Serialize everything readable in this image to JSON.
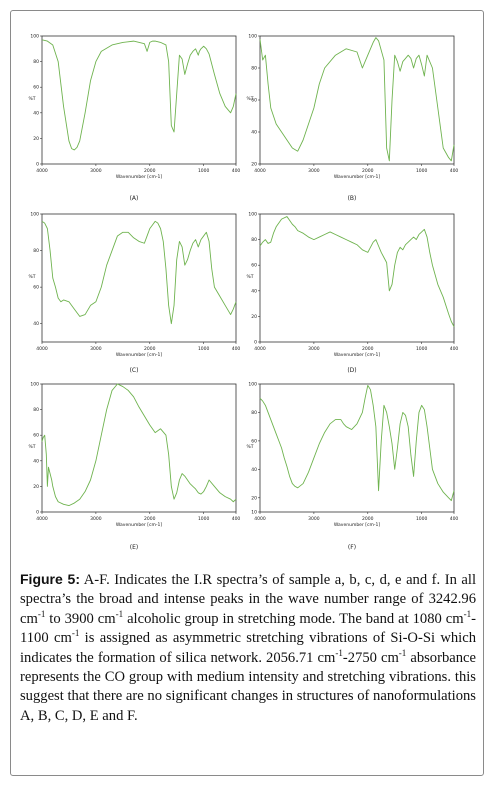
{
  "colors": {
    "trace": "#6fb34f",
    "axis": "#333333",
    "label": "#222222"
  },
  "caption": {
    "figure_label": "Figure 5:",
    "p1": " A-F. Indicates the I.R spectra’s of sample a, b, c, d, e and f. In all spectra’s the broad and intense peaks in the wave number range of 3242.96 cm",
    "p2": " to 3900 cm",
    "p3": " alcoholic group in stretching mode. The band at 1080 cm",
    "p4": "-1100 cm",
    "p5": " is assigned as asymmetric stretching vibrations of Si-O-Si which indicates the formation of silica network. 2056.71 cm",
    "p6": "-2750 cm",
    "p7": " absorbance represents the CO group with medium intensity and stretching vibrations. this suggest that there are no significant changes in structures of nanoformulations A, B, C, D, E and F.",
    "sup": "-1"
  },
  "chart_data": [
    {
      "type": "line",
      "panel_label": "(A)",
      "xlabel": "Wavenumber [cm-1]",
      "ylabel": "%T",
      "xlim": [
        4000,
        400
      ],
      "ylim": [
        0,
        100
      ],
      "xticks": [
        "4000",
        "3000",
        "2000",
        "1000",
        "400"
      ],
      "yticks": [
        "0",
        "20",
        "40",
        "60",
        "80",
        "100"
      ],
      "series": [
        {
          "x": [
            4000,
            3900,
            3800,
            3700,
            3600,
            3500,
            3450,
            3400,
            3350,
            3300,
            3200,
            3100,
            3000,
            2900,
            2700,
            2500,
            2300,
            2100,
            2050,
            2000,
            1950,
            1900,
            1800,
            1700,
            1650,
            1600,
            1550,
            1500,
            1450,
            1400,
            1350,
            1300,
            1250,
            1200,
            1150,
            1100,
            1080,
            1050,
            1000,
            950,
            900,
            800,
            700,
            600,
            500,
            450,
            400
          ],
          "y": [
            97,
            96,
            93,
            80,
            45,
            18,
            12,
            11,
            13,
            18,
            40,
            65,
            80,
            88,
            93,
            95,
            96,
            94,
            88,
            95,
            96,
            96,
            95,
            93,
            80,
            30,
            25,
            55,
            85,
            82,
            70,
            78,
            85,
            88,
            90,
            85,
            88,
            90,
            92,
            90,
            86,
            70,
            55,
            45,
            40,
            45,
            55
          ]
        }
      ]
    },
    {
      "type": "line",
      "panel_label": "(B)",
      "xlabel": "Wavenumber [cm-1]",
      "ylabel": "%T",
      "xlim": [
        4000,
        400
      ],
      "ylim": [
        20,
        100
      ],
      "xticks": [
        "4000",
        "3000",
        "2000",
        "1000",
        "400"
      ],
      "yticks": [
        "20",
        "40",
        "60",
        "80",
        "100"
      ],
      "series": [
        {
          "x": [
            4000,
            3950,
            3900,
            3850,
            3800,
            3700,
            3600,
            3500,
            3400,
            3300,
            3200,
            3100,
            3000,
            2900,
            2800,
            2600,
            2400,
            2200,
            2100,
            2050,
            2000,
            1950,
            1900,
            1850,
            1800,
            1700,
            1650,
            1600,
            1550,
            1500,
            1450,
            1400,
            1350,
            1300,
            1250,
            1200,
            1150,
            1100,
            1050,
            1000,
            950,
            900,
            800,
            700,
            600,
            500,
            450,
            400
          ],
          "y": [
            98,
            85,
            88,
            70,
            55,
            45,
            40,
            35,
            30,
            28,
            35,
            45,
            55,
            70,
            80,
            88,
            92,
            90,
            80,
            84,
            88,
            92,
            96,
            99,
            97,
            85,
            30,
            22,
            60,
            88,
            84,
            78,
            84,
            86,
            88,
            86,
            80,
            86,
            88,
            82,
            75,
            88,
            80,
            55,
            30,
            24,
            22,
            32
          ]
        }
      ]
    },
    {
      "type": "line",
      "panel_label": "(C)",
      "xlabel": "Wavenumber [cm-1]",
      "ylabel": "%T",
      "xlim": [
        4000,
        400
      ],
      "ylim": [
        30,
        100
      ],
      "xticks": [
        "4000",
        "3000",
        "2000",
        "1000",
        "400"
      ],
      "yticks": [
        "40",
        "60",
        "80",
        "100"
      ],
      "series": [
        {
          "x": [
            4000,
            3950,
            3900,
            3850,
            3800,
            3750,
            3700,
            3650,
            3600,
            3500,
            3400,
            3300,
            3200,
            3100,
            3000,
            2900,
            2800,
            2700,
            2600,
            2500,
            2400,
            2300,
            2200,
            2100,
            2050,
            2000,
            1950,
            1900,
            1850,
            1800,
            1750,
            1700,
            1650,
            1600,
            1550,
            1500,
            1450,
            1400,
            1350,
            1300,
            1250,
            1200,
            1150,
            1100,
            1050,
            1000,
            950,
            900,
            850,
            800,
            700,
            600,
            500,
            450,
            400
          ],
          "y": [
            96,
            95,
            92,
            80,
            65,
            60,
            54,
            52,
            53,
            52,
            48,
            44,
            45,
            50,
            52,
            60,
            72,
            80,
            88,
            90,
            90,
            87,
            85,
            84,
            88,
            92,
            94,
            96,
            95,
            92,
            85,
            70,
            50,
            40,
            50,
            75,
            85,
            82,
            72,
            75,
            80,
            84,
            86,
            82,
            86,
            88,
            90,
            85,
            70,
            60,
            55,
            50,
            45,
            48,
            52
          ]
        }
      ]
    },
    {
      "type": "line",
      "panel_label": "(D)",
      "xlabel": "Wavenumber [cm-1]",
      "ylabel": "%T",
      "xlim": [
        4000,
        400
      ],
      "ylim": [
        0,
        100
      ],
      "xticks": [
        "4000",
        "3000",
        "2000",
        "1000",
        "400"
      ],
      "yticks": [
        "0",
        "20",
        "40",
        "60",
        "80",
        "100"
      ],
      "series": [
        {
          "x": [
            4000,
            3950,
            3900,
            3850,
            3800,
            3750,
            3700,
            3600,
            3500,
            3450,
            3400,
            3350,
            3300,
            3200,
            3100,
            3000,
            2900,
            2800,
            2700,
            2600,
            2500,
            2400,
            2300,
            2200,
            2100,
            2000,
            1950,
            1900,
            1850,
            1800,
            1750,
            1700,
            1650,
            1600,
            1550,
            1500,
            1450,
            1400,
            1350,
            1300,
            1250,
            1200,
            1150,
            1100,
            1050,
            1000,
            950,
            900,
            850,
            800,
            700,
            600,
            500,
            450,
            400
          ],
          "y": [
            75,
            78,
            80,
            77,
            78,
            85,
            90,
            96,
            98,
            95,
            92,
            90,
            87,
            85,
            82,
            80,
            82,
            84,
            86,
            84,
            82,
            80,
            78,
            76,
            72,
            70,
            74,
            78,
            80,
            75,
            70,
            66,
            62,
            40,
            45,
            60,
            70,
            74,
            72,
            76,
            78,
            80,
            82,
            80,
            84,
            86,
            88,
            82,
            70,
            60,
            45,
            35,
            22,
            16,
            12
          ]
        }
      ]
    },
    {
      "type": "line",
      "panel_label": "(E)",
      "xlabel": "Wavenumber [cm-1]",
      "ylabel": "%T",
      "xlim": [
        4000,
        400
      ],
      "ylim": [
        0,
        100
      ],
      "xticks": [
        "4000",
        "3000",
        "2000",
        "1000",
        "400"
      ],
      "yticks": [
        "0",
        "20",
        "40",
        "60",
        "80",
        "100"
      ],
      "series": [
        {
          "x": [
            4000,
            3980,
            3950,
            3920,
            3900,
            3880,
            3850,
            3820,
            3800,
            3750,
            3700,
            3600,
            3500,
            3400,
            3300,
            3200,
            3100,
            3000,
            2900,
            2800,
            2700,
            2600,
            2500,
            2400,
            2300,
            2200,
            2100,
            2000,
            1900,
            1800,
            1700,
            1650,
            1600,
            1550,
            1500,
            1450,
            1400,
            1350,
            1300,
            1250,
            1200,
            1150,
            1100,
            1050,
            1000,
            950,
            900,
            800,
            700,
            600,
            500,
            450,
            400
          ],
          "y": [
            55,
            58,
            60,
            45,
            20,
            35,
            30,
            25,
            20,
            12,
            8,
            6,
            5,
            7,
            10,
            16,
            25,
            40,
            60,
            80,
            95,
            100,
            98,
            95,
            90,
            82,
            75,
            68,
            62,
            65,
            60,
            45,
            20,
            10,
            15,
            25,
            30,
            28,
            25,
            22,
            20,
            18,
            15,
            14,
            16,
            20,
            25,
            20,
            15,
            12,
            10,
            8,
            10
          ]
        }
      ]
    },
    {
      "type": "line",
      "panel_label": "(F)",
      "xlabel": "Wavenumber [cm-1]",
      "ylabel": "%T",
      "xlim": [
        4000,
        400
      ],
      "ylim": [
        10,
        100
      ],
      "xticks": [
        "4000",
        "3000",
        "2000",
        "1000",
        "400"
      ],
      "yticks": [
        "10",
        "20",
        "40",
        "60",
        "80",
        "100"
      ],
      "series": [
        {
          "x": [
            4000,
            3950,
            3900,
            3850,
            3800,
            3750,
            3700,
            3650,
            3600,
            3550,
            3500,
            3450,
            3400,
            3350,
            3300,
            3200,
            3100,
            3000,
            2900,
            2800,
            2700,
            2600,
            2500,
            2450,
            2400,
            2300,
            2200,
            2100,
            2050,
            2000,
            1950,
            1900,
            1850,
            1800,
            1750,
            1700,
            1650,
            1600,
            1550,
            1500,
            1450,
            1400,
            1350,
            1300,
            1250,
            1200,
            1150,
            1100,
            1050,
            1000,
            950,
            900,
            850,
            800,
            700,
            600,
            500,
            450,
            400
          ],
          "y": [
            90,
            88,
            85,
            80,
            75,
            70,
            65,
            60,
            55,
            48,
            42,
            35,
            30,
            28,
            27,
            30,
            38,
            48,
            58,
            66,
            72,
            75,
            75,
            72,
            70,
            68,
            72,
            80,
            90,
            99,
            96,
            85,
            70,
            25,
            60,
            85,
            80,
            70,
            58,
            40,
            55,
            72,
            80,
            78,
            70,
            50,
            35,
            60,
            80,
            85,
            82,
            70,
            55,
            40,
            30,
            24,
            20,
            18,
            25
          ]
        }
      ]
    }
  ]
}
